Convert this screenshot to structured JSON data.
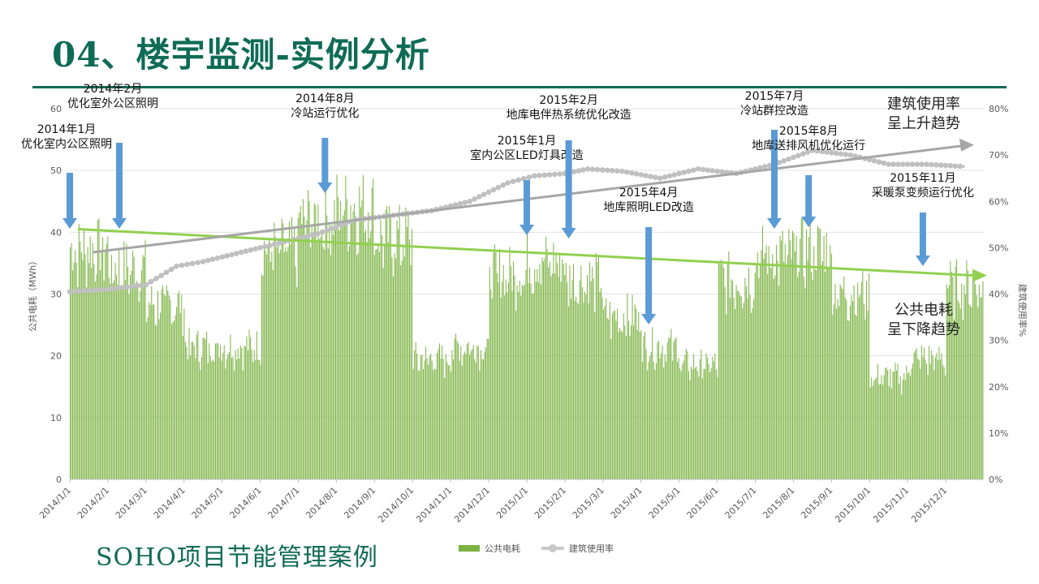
{
  "page": {
    "title": "04、楼宇监测-实例分析",
    "footer": "SOHO项目节能管理案例"
  },
  "colors": {
    "title": "#0f6b55",
    "bars": "#7cb342",
    "occupancy_line": "#c0c0c0",
    "energy_trend": "#92d050",
    "occupancy_trend": "#a6a6a6",
    "arrows": "#5b9bd5"
  },
  "chart_data": {
    "type": "bar",
    "title": "",
    "ylabel": "公共电耗（MWh）",
    "y2label": "建筑使用率%",
    "ylim": [
      0,
      60
    ],
    "y2lim": [
      0,
      80
    ],
    "yticks": [
      0,
      10,
      20,
      30,
      40,
      50,
      60
    ],
    "y2ticks": [
      "0%",
      "10%",
      "20%",
      "30%",
      "40%",
      "50%",
      "60%",
      "70%",
      "80%"
    ],
    "xticks": [
      "2014/1/1",
      "2014/2/1",
      "2014/3/1",
      "2014/4/1",
      "2014/5/1",
      "2014/6/1",
      "2014/7/1",
      "2014/8/1",
      "2014/9/1",
      "2014/10/1",
      "2014/11/1",
      "2014/12/1",
      "2015/1/1",
      "2015/2/1",
      "2015/3/1",
      "2015/4/1",
      "2015/5/1",
      "2015/6/1",
      "2015/7/1",
      "2015/8/1",
      "2015/9/1",
      "2015/10/1",
      "2015/11/1",
      "2015/12/1"
    ],
    "series": [
      {
        "name": "公共电耗",
        "type": "bar",
        "monthly_avg_mwh": [
          38,
          35,
          29,
          22,
          22,
          38,
          43,
          45,
          40,
          20,
          22,
          34,
          36,
          33,
          27,
          22,
          19,
          33,
          37,
          38,
          31,
          17,
          20,
          32
        ]
      },
      {
        "name": "建筑使用率",
        "type": "line",
        "x_month_index": [
          0,
          1,
          2,
          2.8,
          3.5,
          4.5,
          5.5,
          6.5,
          7.5,
          8.5,
          9.5,
          10.5,
          11.5,
          12.2,
          13,
          13.6,
          14.5,
          15.5,
          16.5,
          17.5,
          18.5,
          19.5,
          20.5,
          21.5,
          22.5,
          23.5
        ],
        "percent": [
          40.5,
          41,
          42,
          46,
          47,
          49,
          51,
          53,
          56,
          57,
          58,
          60,
          64,
          65.5,
          66,
          67,
          66.5,
          65,
          67,
          66,
          68,
          71,
          70,
          68,
          68,
          67.5
        ]
      }
    ],
    "trend_lines": [
      {
        "name": "公共电耗趋势",
        "label": "公共电耗\n呈下降趋势",
        "start_mwh": 40.5,
        "end_mwh": 33
      },
      {
        "name": "建筑使用率趋势",
        "label": "建筑使用率\n呈上升趋势",
        "start_pct": 49,
        "end_pct": 72
      }
    ],
    "annotations": [
      {
        "text": "2014年1月\n优化室内公区照明",
        "month_index": 0
      },
      {
        "text": "2014年2月\n优化室外公区照明",
        "month_index": 1.3
      },
      {
        "text": "2014年8月\n冷站运行优化",
        "month_index": 6.7
      },
      {
        "text": "2015年1月\n室内公区LED灯具改造",
        "month_index": 12
      },
      {
        "text": "2015年2月\n地库电伴热系统优化改造",
        "month_index": 13.1
      },
      {
        "text": "2015年4月\n地库照明LED改造",
        "month_index": 15.2
      },
      {
        "text": "2015年7月\n冷站群控改造",
        "month_index": 18.5
      },
      {
        "text": "2015年8月\n地库送排风机优化运行",
        "month_index": 19.4
      },
      {
        "text": "2015年11月\n采暖泵变频运行优化",
        "month_index": 22.4
      }
    ],
    "legend": [
      "公共电耗",
      "建筑使用率"
    ]
  }
}
